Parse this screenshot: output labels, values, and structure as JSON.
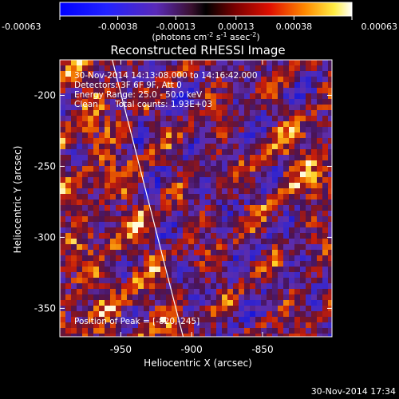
{
  "chart_data": {
    "type": "heatmap",
    "title": "Reconstructed RHESSI Image",
    "xlabel": "Heliocentric X (arcsec)",
    "ylabel": "Heliocentric Y (arcsec)",
    "xlim": [
      -993,
      -801
    ],
    "ylim": [
      -370,
      -175
    ],
    "x_ticks": [
      -950,
      -900,
      -850
    ],
    "y_ticks": [
      -200,
      -250,
      -300,
      -350
    ],
    "x_tick_labels": [
      "-950",
      "-900",
      "-850"
    ],
    "y_tick_labels": [
      "-200",
      "-250",
      "-300",
      "-350"
    ],
    "colorbar": {
      "ticks": [
        -0.00063,
        -0.00038,
        -0.00013,
        0.00013,
        0.00038,
        0.00063
      ],
      "tick_labels": [
        "-0.00063",
        "-0.00038",
        "-0.00013",
        "0.00013",
        "0.00038",
        "0.00063"
      ],
      "units_main": "(photons cm",
      "units_exp1": "-2",
      "units_mid1": " s",
      "units_exp2": "-1",
      "units_mid2": " asec",
      "units_exp3": "-2",
      "units_end": ")"
    },
    "annotations": {
      "time_range": "30-Nov-2014 14:13:08.000 to 14:16:42.000",
      "detectors": "Detectors: 3F 6F 9F, Att 0",
      "energy": "Energy Range: 25.0 - 50.0 keV",
      "clean": "Clean",
      "counts": "Total counts: 1.93E+03",
      "peak": "Position of Peak = [-820,-245]"
    },
    "limb_line": [
      [
        -956,
        -175
      ],
      [
        -906,
        -370
      ]
    ],
    "peak": [
      -820,
      -245
    ],
    "grid": false
  },
  "footer": {
    "timestamp": "30-Nov-2014 17:34"
  }
}
